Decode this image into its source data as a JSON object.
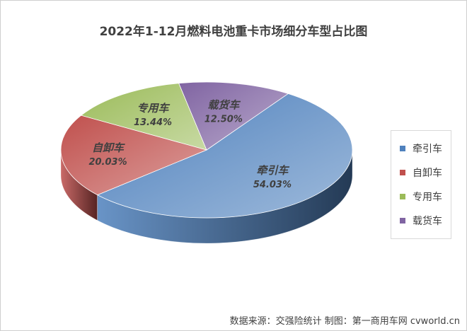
{
  "chart_data": {
    "type": "pie",
    "title": "2022年1-12月燃料电池重卡市场细分车型占比图",
    "categories": [
      "牵引车",
      "自卸车",
      "专用车",
      "载货车"
    ],
    "values": [
      54.03,
      20.03,
      13.44,
      12.5
    ],
    "value_labels": [
      "54.03%",
      "20.03%",
      "13.44%",
      "12.50%"
    ],
    "colors": [
      "#4f81bd",
      "#c0504d",
      "#9bbb59",
      "#8064a2"
    ],
    "legend": {
      "placement": "right",
      "entries": [
        "牵引车",
        "自卸车",
        "专用车",
        "载货车"
      ]
    }
  },
  "footer": {
    "source": "数据来源：交强险统计  制图：第一商用车网 cvworld.cn"
  }
}
